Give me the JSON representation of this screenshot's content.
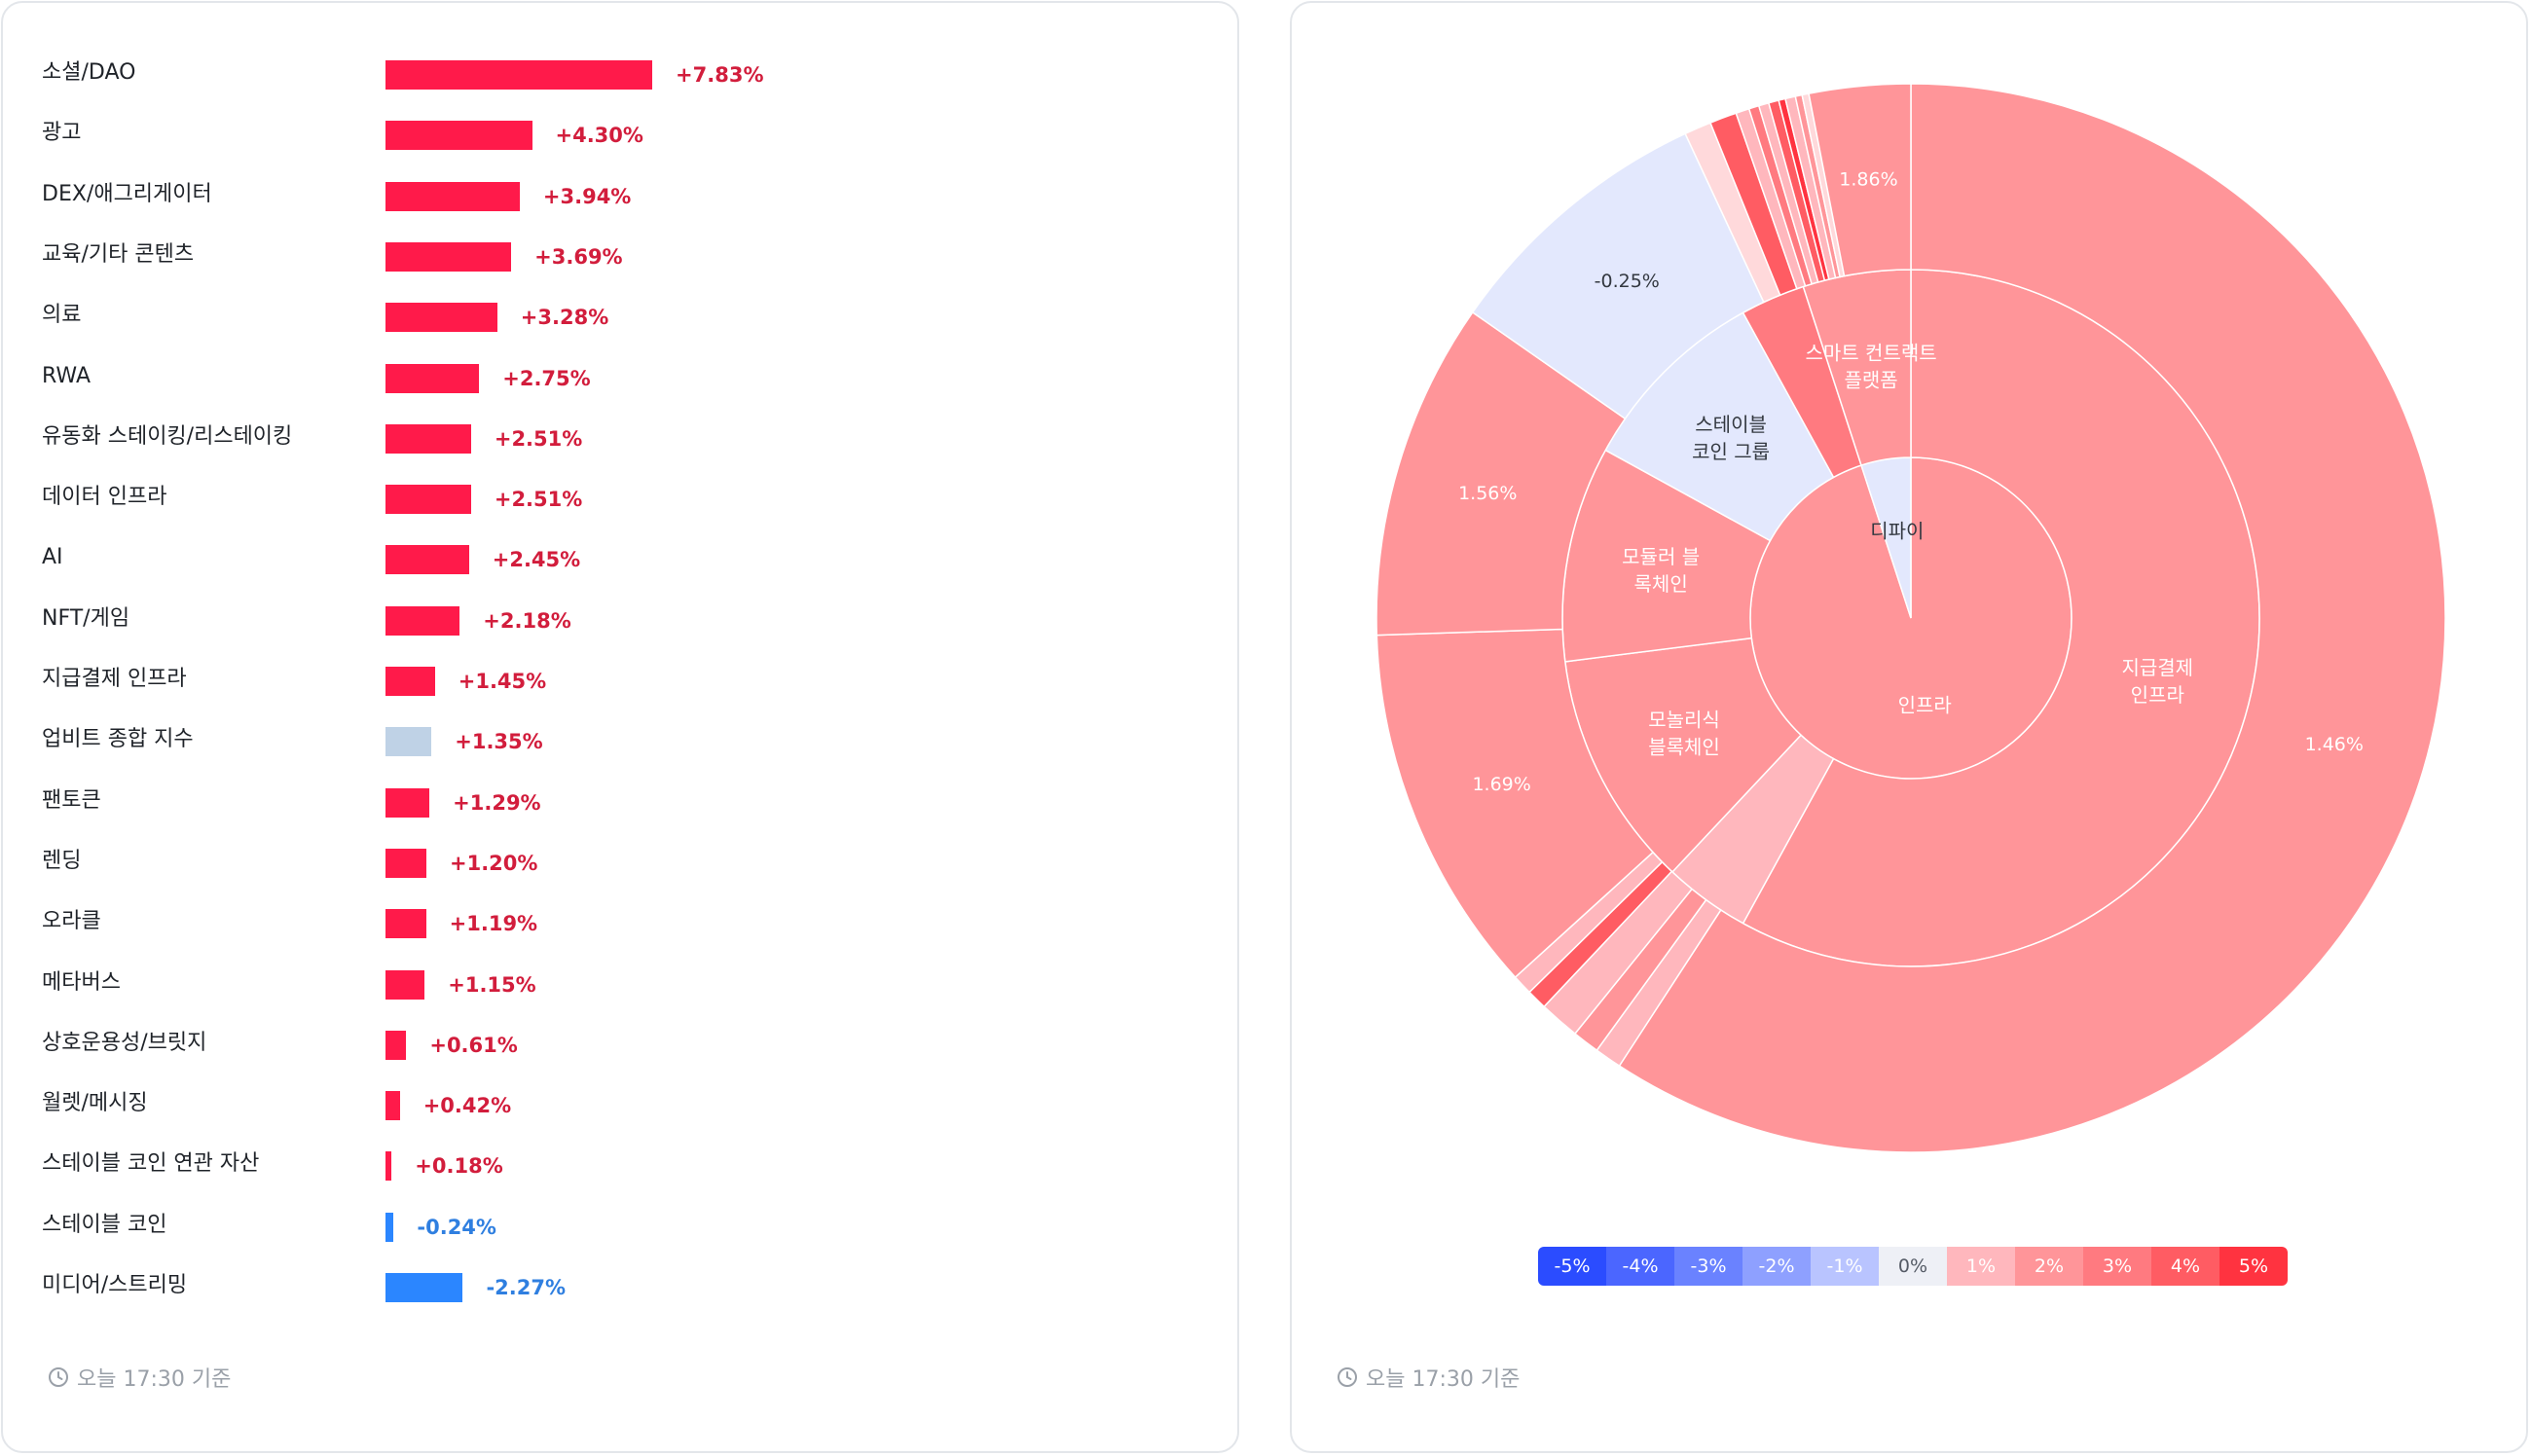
{
  "bar_panel": {
    "timestamp": "오늘 17:30 기준",
    "colors": {
      "positive": "#ff1a4a",
      "negative": "#2b86ff",
      "index": "#bfd2e6",
      "pos_text": "#d21d3c",
      "neg_text": "#2f7fe0"
    }
  },
  "sunburst_panel": {
    "timestamp": "오늘 17:30 기준",
    "legend": [
      {
        "label": "-5%",
        "color": "#2b4cff",
        "text_color": "#ffffff"
      },
      {
        "label": "-4%",
        "color": "#4b66ff",
        "text_color": "#ffffff"
      },
      {
        "label": "-3%",
        "color": "#6a82ff",
        "text_color": "#ffffff"
      },
      {
        "label": "-2%",
        "color": "#8ea0ff",
        "text_color": "#ffffff"
      },
      {
        "label": "-1%",
        "color": "#b9c4ff",
        "text_color": "#ffffff"
      },
      {
        "label": "0%",
        "color": "#eef0f6",
        "text_color": "#555b66"
      },
      {
        "label": "1%",
        "color": "#ffb7bd",
        "text_color": "#ffffff"
      },
      {
        "label": "2%",
        "color": "#ff9599",
        "text_color": "#ffffff"
      },
      {
        "label": "3%",
        "color": "#ff7a80",
        "text_color": "#ffffff"
      },
      {
        "label": "4%",
        "color": "#ff5c63",
        "text_color": "#ffffff"
      },
      {
        "label": "5%",
        "color": "#ff3340",
        "text_color": "#ffffff"
      }
    ]
  },
  "chart_data": [
    {
      "type": "bar",
      "orientation": "horizontal",
      "categories": [
        "소셜/DAO",
        "광고",
        "DEX/애그리게이터",
        "교육/기타 콘텐츠",
        "의료",
        "RWA",
        "유동화 스테이킹/리스테이킹",
        "데이터 인프라",
        "AI",
        "NFT/게임",
        "지급결제 인프라",
        "업비트 종합 지수",
        "팬토큰",
        "렌딩",
        "오라클",
        "메타버스",
        "상호운용성/브릿지",
        "월렛/메시징",
        "스테이블 코인 연관 자산",
        "스테이블 코인",
        "미디어/스트리밍"
      ],
      "values": [
        7.83,
        4.3,
        3.94,
        3.69,
        3.28,
        2.75,
        2.51,
        2.51,
        2.45,
        2.18,
        1.45,
        1.35,
        1.29,
        1.2,
        1.19,
        1.15,
        0.61,
        0.42,
        0.18,
        -0.24,
        -2.27
      ],
      "value_labels": [
        "+7.83%",
        "+4.30%",
        "+3.94%",
        "+3.69%",
        "+3.28%",
        "+2.75%",
        "+2.51%",
        "+2.51%",
        "+2.45%",
        "+2.18%",
        "+1.45%",
        "+1.35%",
        "+1.29%",
        "+1.20%",
        "+1.19%",
        "+1.15%",
        "+0.61%",
        "+0.42%",
        "+0.18%",
        "-0.24%",
        "-2.27%"
      ]
    },
    {
      "type": "sunburst",
      "rings": {
        "inner": [
          {
            "label": "인프라",
            "share": 0.95,
            "color": "#ff9599"
          },
          {
            "label": "디파이",
            "share": 0.05,
            "color": "#e3e8fd"
          }
        ],
        "middle": [
          {
            "label": "지급결제\n인프라",
            "share": 0.58,
            "color": "#ff9599"
          },
          {
            "label": "",
            "share": 0.04,
            "color": "#ffb7bd"
          },
          {
            "label": "모놀리식\n블록체인",
            "share": 0.11,
            "color": "#ff9599"
          },
          {
            "label": "모듈러 블\n록체인",
            "share": 0.1,
            "color": "#ff9599"
          },
          {
            "label": "스테이블\n코인 그룹",
            "share": 0.09,
            "color": "#e3e8fd"
          },
          {
            "label": "",
            "share": 0.03,
            "color": "#ff7a80"
          },
          {
            "label": "스마트 컨트랙트\n플랫폼",
            "share": 0.05,
            "color": "#ff9599"
          }
        ],
        "outer": [
          {
            "label": "1.46%",
            "share": 0.58,
            "color": "#ff9599"
          },
          {
            "label": "",
            "share": 0.008,
            "color": "#ffb7bd"
          },
          {
            "label": "",
            "share": 0.008,
            "color": "#ff9599"
          },
          {
            "label": "",
            "share": 0.012,
            "color": "#ffb7bd"
          },
          {
            "label": "",
            "share": 0.006,
            "color": "#ff5c63"
          },
          {
            "label": "",
            "share": 0.006,
            "color": "#ffb7bd"
          },
          {
            "label": "1.69%",
            "share": 0.11,
            "color": "#ff9599"
          },
          {
            "label": "1.56%",
            "share": 0.1,
            "color": "#ff9599"
          },
          {
            "label": "-0.25%",
            "share": 0.082,
            "color": "#e3e8fd"
          },
          {
            "label": "",
            "share": 0.008,
            "color": "#ffd9db"
          },
          {
            "label": "",
            "share": 0.008,
            "color": "#ff5c63"
          },
          {
            "label": "",
            "share": 0.004,
            "color": "#ffb7bd"
          },
          {
            "label": "",
            "share": 0.003,
            "color": "#ff7a80"
          },
          {
            "label": "",
            "share": 0.003,
            "color": "#ffb7bd"
          },
          {
            "label": "",
            "share": 0.003,
            "color": "#ff5c63"
          },
          {
            "label": "",
            "share": 0.002,
            "color": "#ff3340"
          },
          {
            "label": "",
            "share": 0.003,
            "color": "#ffb7bd"
          },
          {
            "label": "",
            "share": 0.002,
            "color": "#ff9599"
          },
          {
            "label": "",
            "share": 0.002,
            "color": "#ffd9db"
          },
          {
            "label": "1.86%",
            "share": 0.03,
            "color": "#ff9599"
          }
        ]
      }
    }
  ]
}
